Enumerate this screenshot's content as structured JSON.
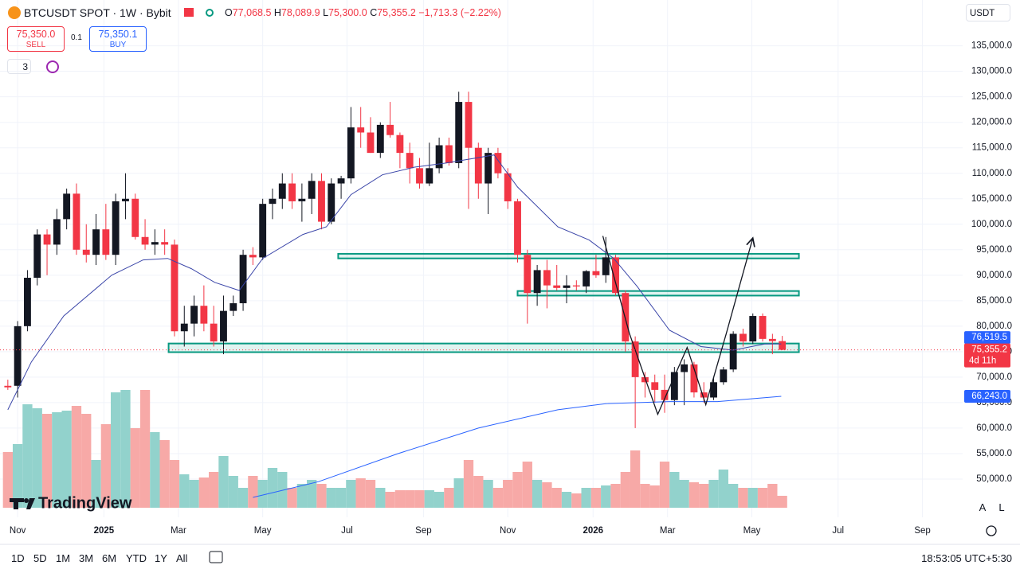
{
  "header": {
    "symbol": "BTCUSDT SPOT · 1W · Bybit",
    "o_label": "O",
    "o": "77,068.5",
    "h_label": "H",
    "h": "78,089.9",
    "l_label": "L",
    "l": "75,300.0",
    "c_label": "C",
    "c": "75,355.2",
    "change": "−1,713.3 (−2.22%)"
  },
  "trade": {
    "sell_price": "75,350.0",
    "sell": "SELL",
    "qty": "0.1",
    "buy_price": "75,350.1",
    "buy": "BUY"
  },
  "indicators_count": "3",
  "currency": "USDT",
  "logo": "TradingView",
  "scale_buttons": [
    "A",
    "L"
  ],
  "toolbar": {
    "ranges": [
      "1D",
      "5D",
      "1M",
      "3M",
      "6M",
      "YTD",
      "1Y",
      "All"
    ],
    "clock": "18:53:05 UTC+5:30"
  },
  "chart_data": {
    "type": "candlestick",
    "xlim": [
      -0.8,
      97.4
    ],
    "ylim": [
      42500,
      144000
    ],
    "yticks": [
      {
        "value": 50000,
        "label": "50,000.0"
      },
      {
        "value": 55000,
        "label": "55,000.0"
      },
      {
        "value": 60000,
        "label": "60,000.0"
      },
      {
        "value": 65000,
        "label": "65,000.0"
      },
      {
        "value": 70000,
        "label": "70,000.0"
      },
      {
        "value": 75000,
        "label": "75,000.0"
      },
      {
        "value": 80000,
        "label": "80,000.0"
      },
      {
        "value": 85000,
        "label": "85,000.0"
      },
      {
        "value": 90000,
        "label": "90,000.0"
      },
      {
        "value": 95000,
        "label": "95,000.0"
      },
      {
        "value": 100000,
        "label": "100,000.0"
      },
      {
        "value": 105000,
        "label": "105,000.0"
      },
      {
        "value": 110000,
        "label": "110,000.0"
      },
      {
        "value": 115000,
        "label": "115,000.0"
      },
      {
        "value": 120000,
        "label": "120,000.0"
      },
      {
        "value": 125000,
        "label": "125,000.0"
      },
      {
        "value": 130000,
        "label": "130,000.0"
      },
      {
        "value": 135000,
        "label": "135,000.0"
      }
    ],
    "xticks": [
      {
        "value": 1,
        "label": "Nov"
      },
      {
        "value": 9.8,
        "label": "2025"
      },
      {
        "value": 17.4,
        "label": "Mar"
      },
      {
        "value": 26,
        "label": "May"
      },
      {
        "value": 34.6,
        "label": "Jul"
      },
      {
        "value": 42.4,
        "label": "Sep"
      },
      {
        "value": 51,
        "label": "Nov"
      },
      {
        "value": 59.7,
        "label": "2026"
      },
      {
        "value": 67.3,
        "label": "Mar"
      },
      {
        "value": 75.9,
        "label": "May"
      },
      {
        "value": 84.7,
        "label": "Jul"
      },
      {
        "value": 93.3,
        "label": "Sep"
      }
    ],
    "up_color": "#131722",
    "down_color": "#f23645",
    "volume_up_color": "#92d2cc",
    "volume_down_color": "#f7a9a7",
    "candles": {
      "open": [
        68300,
        68300,
        80000,
        89500,
        98000,
        96000,
        101000,
        106000,
        95000,
        94000,
        99000,
        94000,
        104500,
        105000,
        97500,
        96000,
        96500,
        96000,
        79000,
        80500,
        84000,
        80500,
        77000,
        83000,
        84500,
        94000,
        93500,
        104000,
        105000,
        108000,
        104500,
        105000,
        108500,
        100500,
        108000,
        109000,
        119000,
        118000,
        114000,
        119500,
        117500,
        114000,
        111000,
        108000,
        111000,
        115500,
        112000,
        124000,
        115000,
        108000,
        114000,
        110000,
        104500,
        94000,
        86500,
        91000,
        88000,
        87500,
        88000,
        87800,
        90800,
        90000,
        93500,
        86500,
        77000,
        70000,
        69000,
        67500,
        65500,
        71000,
        72500,
        67000,
        66000,
        69000,
        71500,
        78500,
        77000,
        82000,
        77500,
        77068.5
      ],
      "high": [
        69500,
        81000,
        91000,
        99000,
        99000,
        103000,
        107000,
        108000,
        100000,
        102000,
        104000,
        106000,
        110000,
        106000,
        101000,
        99000,
        99000,
        97000,
        84000,
        86000,
        88000,
        84000,
        86000,
        86000,
        95000,
        95500,
        105000,
        107000,
        110000,
        110000,
        108000,
        110000,
        110000,
        109000,
        109500,
        123000,
        123000,
        121000,
        120000,
        124000,
        118000,
        116000,
        113000,
        116000,
        117000,
        117000,
        126000,
        126000,
        116000,
        115000,
        115000,
        111000,
        105000,
        95000,
        92000,
        93000,
        92000,
        90000,
        89000,
        91000,
        94000,
        97500,
        94000,
        87000,
        78000,
        71000,
        70500,
        70500,
        72000,
        73500,
        73000,
        69000,
        70000,
        72000,
        79000,
        79500,
        82500,
        82500,
        78500,
        78089.9
      ],
      "low": [
        67500,
        66000,
        79000,
        88000,
        90000,
        94000,
        99000,
        94000,
        92500,
        92000,
        93000,
        92000,
        101000,
        97000,
        95000,
        94000,
        94000,
        78000,
        76000,
        78000,
        79000,
        76000,
        74500,
        82000,
        83000,
        92000,
        93000,
        101000,
        103000,
        103000,
        100500,
        102000,
        99000,
        100000,
        105000,
        108000,
        115000,
        114000,
        113000,
        117000,
        111000,
        108000,
        107000,
        107500,
        110000,
        111500,
        111000,
        103000,
        105000,
        102000,
        109000,
        103000,
        92500,
        80500,
        84000,
        83500,
        87000,
        84500,
        87000,
        86500,
        89500,
        88500,
        86000,
        75000,
        60000,
        66000,
        65000,
        63000,
        64500,
        64500,
        66000,
        65000,
        65500,
        68500,
        71000,
        76000,
        76500,
        77000,
        74500,
        75300
      ],
      "close": [
        68000,
        80000,
        89500,
        98000,
        96000,
        101000,
        106000,
        95000,
        94000,
        99000,
        94000,
        104500,
        105000,
        97500,
        96000,
        96500,
        96000,
        79000,
        80500,
        84000,
        80500,
        77000,
        83000,
        84500,
        94000,
        93500,
        104000,
        105000,
        108000,
        104500,
        105000,
        108500,
        100500,
        108000,
        109000,
        119000,
        118000,
        114000,
        119500,
        117500,
        114000,
        111000,
        108000,
        111000,
        115500,
        112000,
        124000,
        115000,
        108000,
        114000,
        110000,
        104500,
        94000,
        86500,
        91000,
        88000,
        87500,
        88000,
        87800,
        90800,
        90000,
        93500,
        86500,
        77000,
        70000,
        69000,
        67500,
        65500,
        71000,
        72500,
        67000,
        66000,
        69000,
        71500,
        78500,
        77000,
        82000,
        77500,
        77068.5,
        75355.2
      ]
    },
    "volume": [
      70,
      80,
      130,
      125,
      118,
      120,
      122,
      128,
      118,
      60,
      105,
      145,
      148,
      100,
      148,
      95,
      85,
      60,
      42,
      35,
      38,
      45,
      65,
      40,
      25,
      40,
      35,
      50,
      45,
      25,
      30,
      35,
      30,
      25,
      25,
      35,
      37,
      35,
      25,
      20,
      22,
      22,
      22,
      22,
      20,
      25,
      37,
      60,
      40,
      35,
      25,
      35,
      45,
      58,
      35,
      32,
      25,
      20,
      18,
      25,
      25,
      28,
      30,
      45,
      72,
      30,
      28,
      58,
      45,
      35,
      32,
      30,
      35,
      48,
      30,
      25,
      25,
      25,
      30,
      15
    ],
    "ma_fast": {
      "color": "#3a45a8",
      "x": [
        0,
        2.4,
        5.7,
        10.6,
        13.8,
        16.3,
        18.7,
        21.1,
        23.6,
        26,
        30.1,
        32.5,
        35,
        38.2,
        41.5,
        44.7,
        49.6,
        52,
        56.1,
        59.3,
        61.8,
        64.2,
        67.5,
        70.7,
        74,
        77.2,
        78.9
      ],
      "values": [
        63600,
        73000,
        82000,
        90000,
        93000,
        93300,
        91300,
        88600,
        87000,
        93300,
        98000,
        99500,
        105800,
        109700,
        111200,
        112000,
        113600,
        107300,
        99500,
        96900,
        93300,
        87800,
        79200,
        76000,
        75300,
        76500,
        76519.5
      ]
    },
    "ma_slow": {
      "color": "#2962ff",
      "x": [
        25,
        31.7,
        39.8,
        48,
        56.1,
        61,
        67.5,
        72.4,
        78.9
      ],
      "values": [
        46400,
        49500,
        55000,
        60000,
        63600,
        64800,
        65200,
        65200,
        66243
      ]
    },
    "zones": [
      {
        "start": 33.7,
        "end": 80.7,
        "low": 93300,
        "high": 94200
      },
      {
        "start": 52,
        "end": 80.7,
        "low": 86000,
        "high": 86900
      },
      {
        "start": 16.4,
        "end": 80.7,
        "low": 74900,
        "high": 76600
      }
    ],
    "zone_color": "#089981",
    "drawing": {
      "x": [
        60.7,
        63.4,
        66.3,
        69.3,
        71.2,
        73.3,
        76
      ],
      "values": [
        97700,
        78600,
        62700,
        75800,
        64600,
        78600,
        97300
      ]
    },
    "price_labels": [
      {
        "value": 76519.5,
        "label": "76,519.5",
        "color": "#2962ff"
      },
      {
        "value": 75355.2,
        "label": "75,355.2",
        "sub": "4d 11h",
        "color": "#f23645"
      },
      {
        "value": 66243,
        "label": "66,243.0",
        "color": "#2962ff"
      }
    ]
  }
}
